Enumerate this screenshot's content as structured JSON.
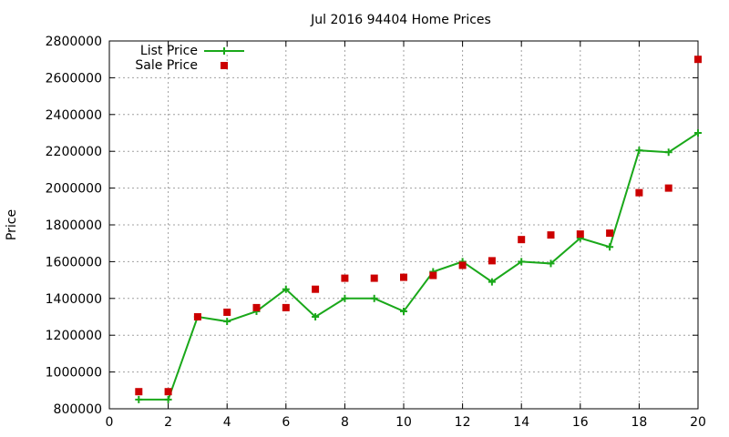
{
  "chart_data": {
    "type": "line",
    "title": "Jul 2016 94404 Home Prices",
    "xlabel": "",
    "ylabel": "Price",
    "xlim": [
      0,
      20
    ],
    "ylim": [
      800000,
      2800000
    ],
    "grid": true,
    "legend_position": "top-left",
    "x_ticks": [
      0,
      2,
      4,
      6,
      8,
      10,
      12,
      14,
      16,
      18,
      20
    ],
    "y_ticks": [
      800000,
      1000000,
      1200000,
      1400000,
      1600000,
      1800000,
      2000000,
      2200000,
      2400000,
      2600000,
      2800000
    ],
    "x": [
      1,
      2,
      3,
      4,
      5,
      6,
      7,
      8,
      9,
      10,
      11,
      12,
      13,
      14,
      15,
      16,
      17,
      18,
      19,
      20
    ],
    "series": [
      {
        "name": "List Price",
        "style": "linespoints",
        "color": "#1aa81a",
        "marker": "plus",
        "values": [
          850000,
          850000,
          1300000,
          1275000,
          1330000,
          1450000,
          1300000,
          1400000,
          1400000,
          1330000,
          1545000,
          1600000,
          1490000,
          1600000,
          1590000,
          1728000,
          1680000,
          2205000,
          2195000,
          2300000
        ]
      },
      {
        "name": "Sale Price",
        "style": "points",
        "color": "#cc0000",
        "marker": "square",
        "values": [
          893000,
          893000,
          1300000,
          1325000,
          1350000,
          1350000,
          1450000,
          1510000,
          1510000,
          1515000,
          1525000,
          1580000,
          1605000,
          1720000,
          1745000,
          1750000,
          1755000,
          1975000,
          2000000,
          2700000
        ]
      }
    ]
  }
}
